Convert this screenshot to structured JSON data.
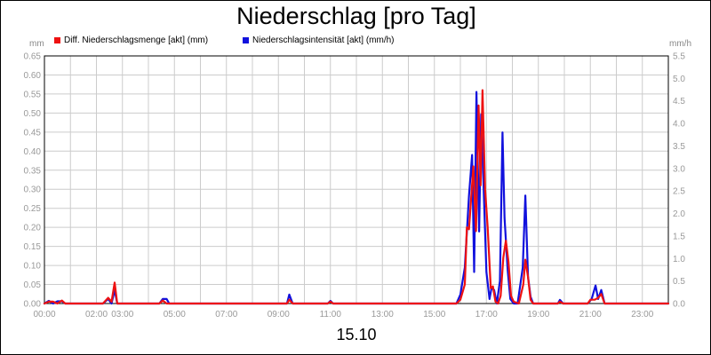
{
  "title": "Niederschlag [pro Tag]",
  "date_label": "15.10",
  "axis_units": {
    "left": "mm",
    "right": "mm/h"
  },
  "legend": [
    {
      "label": "Diff. Niederschlagsmenge [akt] (mm)",
      "color": "#ee1111"
    },
    {
      "label": "Niederschlagsintensität [akt] (mm/h)",
      "color": "#1111dd"
    }
  ],
  "chart_data": {
    "type": "line",
    "title": "Niederschlag [pro Tag]",
    "xlabel": "15.10",
    "x_range_hours": [
      0,
      24
    ],
    "x_tick_labels": [
      "00:00",
      "02:00",
      "03:00",
      "05:00",
      "07:00",
      "09:00",
      "11:00",
      "13:00",
      "15:00",
      "17:00",
      "19:00",
      "21:00",
      "23:00"
    ],
    "x_tick_hours": [
      0,
      2,
      3,
      5,
      7,
      9,
      11,
      13,
      15,
      17,
      19,
      21,
      23
    ],
    "y_left": {
      "unit": "mm",
      "range": [
        0,
        0.65
      ],
      "ticks": [
        "0.00",
        "0.05",
        "0.10",
        "0.15",
        "0.20",
        "0.25",
        "0.30",
        "0.35",
        "0.40",
        "0.45",
        "0.50",
        "0.55",
        "0.60",
        "0.65"
      ]
    },
    "y_right": {
      "unit": "mm/h",
      "range": [
        0,
        5.5
      ],
      "ticks": [
        "0.0",
        "0.5",
        "1.0",
        "1.5",
        "2.0",
        "2.5",
        "3.0",
        "3.5",
        "4.0",
        "4.5",
        "5.0",
        "5.5"
      ]
    },
    "grid": true,
    "series": [
      {
        "name": "Diff. Niederschlagsmenge [akt] (mm)",
        "axis": "left",
        "color": "#ee1111",
        "points": [
          [
            0,
            0
          ],
          [
            0.17,
            0.005
          ],
          [
            0.33,
            0.005
          ],
          [
            0.5,
            0.0
          ],
          [
            0.67,
            0.008
          ],
          [
            0.8,
            0.0
          ],
          [
            2.25,
            0.0
          ],
          [
            2.45,
            0.015
          ],
          [
            2.58,
            0.005
          ],
          [
            2.7,
            0.055
          ],
          [
            2.8,
            0.0
          ],
          [
            4.42,
            0.0
          ],
          [
            4.55,
            0.008
          ],
          [
            4.7,
            0.0
          ],
          [
            9.33,
            0.0
          ],
          [
            9.42,
            0.01
          ],
          [
            9.55,
            0.0
          ],
          [
            10.9,
            0.0
          ],
          [
            11.0,
            0.005
          ],
          [
            11.1,
            0.0
          ],
          [
            15.85,
            0.0
          ],
          [
            16.0,
            0.01
          ],
          [
            16.17,
            0.05
          ],
          [
            16.25,
            0.2
          ],
          [
            16.33,
            0.195
          ],
          [
            16.5,
            0.36
          ],
          [
            16.6,
            0.19
          ],
          [
            16.7,
            0.52
          ],
          [
            16.78,
            0.31
          ],
          [
            16.85,
            0.56
          ],
          [
            16.95,
            0.3
          ],
          [
            17.05,
            0.2
          ],
          [
            17.17,
            0.04
          ],
          [
            17.25,
            0.045
          ],
          [
            17.35,
            0.005
          ],
          [
            17.45,
            0.0
          ],
          [
            17.55,
            0.02
          ],
          [
            17.65,
            0.12
          ],
          [
            17.75,
            0.165
          ],
          [
            17.85,
            0.11
          ],
          [
            17.95,
            0.02
          ],
          [
            18.05,
            0.005
          ],
          [
            18.25,
            0.0
          ],
          [
            18.42,
            0.05
          ],
          [
            18.5,
            0.115
          ],
          [
            18.6,
            0.07
          ],
          [
            18.7,
            0.01
          ],
          [
            18.8,
            0.0
          ],
          [
            19.75,
            0.0
          ],
          [
            19.83,
            0.005
          ],
          [
            19.95,
            0.0
          ],
          [
            20.9,
            0.0
          ],
          [
            21.0,
            0.01
          ],
          [
            21.17,
            0.01
          ],
          [
            21.3,
            0.015
          ],
          [
            21.42,
            0.025
          ],
          [
            21.55,
            0.0
          ],
          [
            24,
            0.0
          ]
        ]
      },
      {
        "name": "Niederschlagsintensität [akt] (mm/h)",
        "axis": "right",
        "color": "#1111dd",
        "points": [
          [
            0,
            0
          ],
          [
            0.17,
            0.06
          ],
          [
            0.33,
            0.0
          ],
          [
            0.5,
            0.05
          ],
          [
            0.67,
            0.05
          ],
          [
            0.8,
            0.0
          ],
          [
            2.25,
            0.0
          ],
          [
            2.45,
            0.1
          ],
          [
            2.58,
            0.0
          ],
          [
            2.7,
            0.3
          ],
          [
            2.8,
            0.0
          ],
          [
            4.42,
            0.0
          ],
          [
            4.55,
            0.1
          ],
          [
            4.7,
            0.1
          ],
          [
            4.8,
            0.0
          ],
          [
            9.33,
            0.0
          ],
          [
            9.42,
            0.2
          ],
          [
            9.55,
            0.0
          ],
          [
            10.9,
            0.0
          ],
          [
            11.0,
            0.06
          ],
          [
            11.1,
            0.0
          ],
          [
            15.85,
            0.0
          ],
          [
            16.0,
            0.2
          ],
          [
            16.17,
            0.8
          ],
          [
            16.33,
            2.4
          ],
          [
            16.45,
            3.3
          ],
          [
            16.53,
            0.7
          ],
          [
            16.62,
            4.7
          ],
          [
            16.72,
            1.6
          ],
          [
            16.8,
            4.2
          ],
          [
            16.9,
            2.5
          ],
          [
            17.0,
            0.7
          ],
          [
            17.12,
            0.1
          ],
          [
            17.2,
            0.35
          ],
          [
            17.3,
            0.3
          ],
          [
            17.4,
            0.0
          ],
          [
            17.52,
            0.5
          ],
          [
            17.62,
            3.8
          ],
          [
            17.7,
            1.9
          ],
          [
            17.82,
            0.75
          ],
          [
            17.92,
            0.1
          ],
          [
            18.05,
            0.0
          ],
          [
            18.2,
            0.0
          ],
          [
            18.4,
            0.8
          ],
          [
            18.5,
            2.4
          ],
          [
            18.6,
            0.6
          ],
          [
            18.7,
            0.15
          ],
          [
            18.8,
            0.0
          ],
          [
            19.75,
            0.0
          ],
          [
            19.83,
            0.08
          ],
          [
            19.95,
            0.0
          ],
          [
            20.9,
            0.0
          ],
          [
            21.05,
            0.1
          ],
          [
            21.2,
            0.4
          ],
          [
            21.3,
            0.1
          ],
          [
            21.42,
            0.3
          ],
          [
            21.55,
            0.0
          ],
          [
            24,
            0.0
          ]
        ]
      }
    ]
  }
}
